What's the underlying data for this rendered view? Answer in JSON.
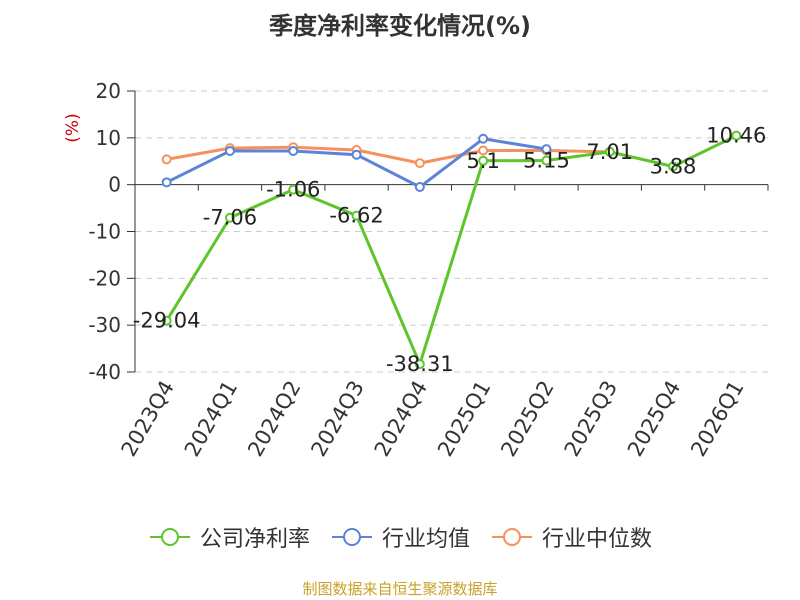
{
  "chart_data": {
    "type": "line",
    "title": "季度净利率变化情况(%)",
    "ylabel": "(%)",
    "xlabel": "",
    "ylim": [
      -40,
      20
    ],
    "yticks": [
      20,
      10,
      0,
      -10,
      -20,
      -30,
      -40
    ],
    "categories": [
      "2023Q4",
      "2024Q1",
      "2024Q2",
      "2024Q3",
      "2024Q4",
      "2025Q1",
      "2025Q2",
      "2025Q3",
      "2025Q4",
      "2026Q1"
    ],
    "grid": true,
    "legend_position": "bottom",
    "series": [
      {
        "name": "公司净利率",
        "color": "#5ec42a",
        "values": [
          -29.04,
          -7.06,
          -1.06,
          -6.62,
          -38.31,
          5.1,
          5.15,
          7.01,
          3.88,
          10.46
        ],
        "labels": [
          "-29.04",
          "-7.06",
          "-1.06",
          "-6.62",
          "-38.31",
          "5.1",
          "5.15",
          "7.01",
          "3.88",
          "10.46"
        ]
      },
      {
        "name": "行业均值",
        "color": "#5b84d8",
        "values": [
          0.5,
          7.2,
          7.2,
          6.4,
          -0.5,
          9.8,
          7.6,
          null,
          null,
          null
        ]
      },
      {
        "name": "行业中位数",
        "color": "#f5915c",
        "values": [
          5.4,
          7.8,
          8.0,
          7.4,
          4.6,
          7.3,
          7.3,
          7.0,
          null,
          null
        ]
      }
    ]
  },
  "source_note": "制图数据来自恒生聚源数据库"
}
